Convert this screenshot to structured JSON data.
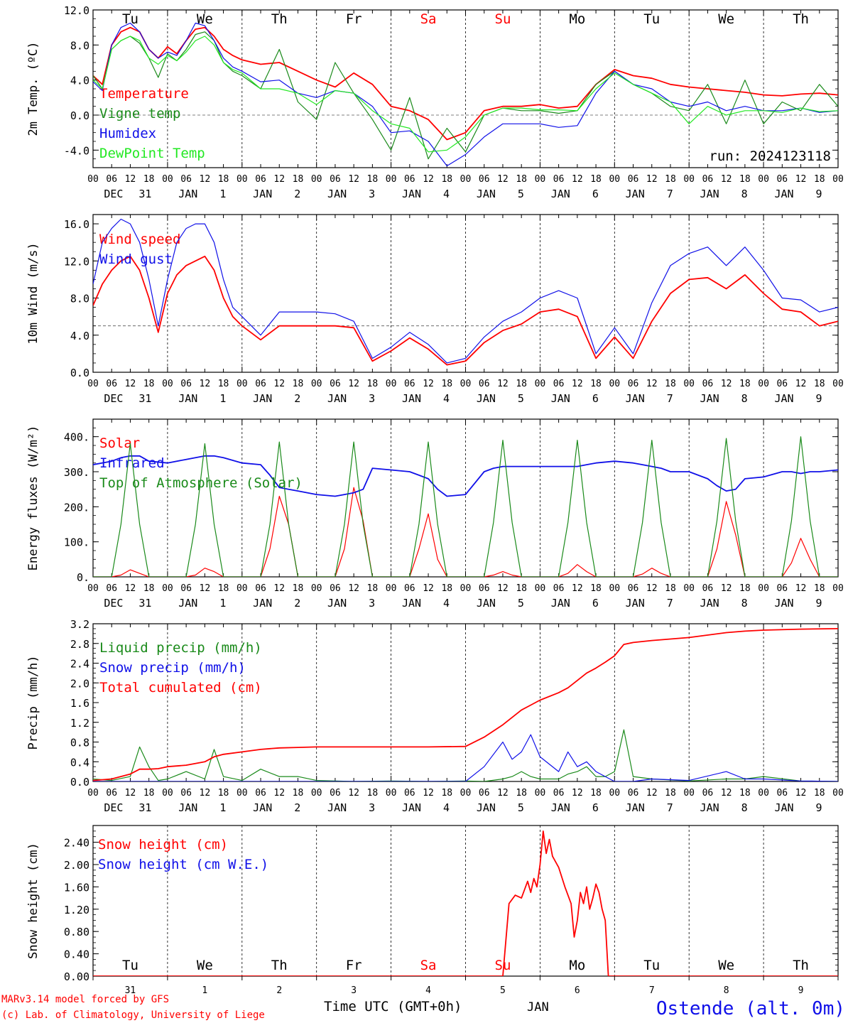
{
  "colors": {
    "red": "#ff0000",
    "darkgreen": "#1a8a1a",
    "blue": "#1010e8",
    "lightgreen": "#22e822",
    "weekend": "#ff0000"
  },
  "day_names": [
    "Tu",
    "We",
    "Th",
    "Fr",
    "Sa",
    "Su",
    "Mo",
    "Tu",
    "We",
    "Th"
  ],
  "weekend_flags": [
    false,
    false,
    false,
    false,
    true,
    true,
    false,
    false,
    false,
    false
  ],
  "hour_ticks": [
    "00",
    "06",
    "12",
    "18"
  ],
  "date_labels": [
    {
      "mon": "DEC",
      "day": "31"
    },
    {
      "mon": "JAN",
      "day": "1"
    },
    {
      "mon": "JAN",
      "day": "2"
    },
    {
      "mon": "JAN",
      "day": "3"
    },
    {
      "mon": "JAN",
      "day": "4"
    },
    {
      "mon": "JAN",
      "day": "5"
    },
    {
      "mon": "JAN",
      "day": "6"
    },
    {
      "mon": "JAN",
      "day": "7"
    },
    {
      "mon": "JAN",
      "day": "8"
    },
    {
      "mon": "JAN",
      "day": "9"
    }
  ],
  "bottom_days": [
    "31",
    "1",
    "2",
    "3",
    "4",
    "5",
    "6",
    "7",
    "8",
    "9"
  ],
  "footer": {
    "model": "MARv3.14 model forced by GFS",
    "credit": "(c) Lab. of Climatology, University of Liege",
    "xlabel": "Time UTC (GMT+0h)",
    "month": "JAN",
    "station": "Ostende (alt. 0m)"
  },
  "chart_data": [
    {
      "type": "line",
      "ylabel": "2m Temp. (ºC)",
      "ylim": [
        -6,
        12
      ],
      "yticks": [
        "-4.0",
        "0.0",
        "4.0",
        "8.0",
        "12.0"
      ],
      "ytick_values": [
        -4,
        0,
        4,
        8,
        12
      ],
      "reference_line": 0,
      "annotation": "run: 2024123118",
      "x_hours": [
        0,
        3,
        6,
        9,
        12,
        15,
        18,
        21,
        24,
        27,
        30,
        33,
        36,
        39,
        42,
        45,
        48,
        54,
        60,
        66,
        72,
        78,
        84,
        90,
        96,
        102,
        108,
        114,
        120,
        126,
        132,
        138,
        144,
        150,
        156,
        162,
        168,
        174,
        180,
        186,
        192,
        198,
        204,
        210,
        216,
        222,
        228,
        234,
        240
      ],
      "series": [
        {
          "name": "Temperature",
          "color": "red",
          "values": [
            4.5,
            3.5,
            8.0,
            9.5,
            10.0,
            9.5,
            7.5,
            6.5,
            7.8,
            7.0,
            8.5,
            9.8,
            10.0,
            9.0,
            7.5,
            6.8,
            6.3,
            5.8,
            6.0,
            5.0,
            4.0,
            3.2,
            4.8,
            3.5,
            1.0,
            0.5,
            -0.5,
            -2.8,
            -2.0,
            0.5,
            1.0,
            1.0,
            1.2,
            0.8,
            1.0,
            3.5,
            5.2,
            4.5,
            4.2,
            3.5,
            3.2,
            3.0,
            2.8,
            2.6,
            2.3,
            2.2,
            2.4,
            2.5,
            2.3
          ]
        },
        {
          "name": "Vigne temp",
          "color": "darkgreen",
          "values": [
            4.5,
            3.0,
            7.5,
            8.5,
            9.0,
            8.2,
            6.5,
            4.3,
            7.0,
            6.2,
            7.5,
            9.2,
            9.5,
            8.5,
            6.0,
            5.0,
            4.5,
            3.0,
            7.5,
            1.5,
            -0.5,
            6.0,
            2.5,
            -0.5,
            -4.0,
            2.0,
            -5.0,
            -1.5,
            -4.2,
            0.0,
            0.8,
            0.5,
            0.5,
            0.2,
            0.5,
            3.5,
            5.0,
            3.5,
            2.5,
            1.0,
            0.5,
            3.5,
            -1.0,
            4.0,
            -1.0,
            1.5,
            0.5,
            3.5,
            1.0
          ]
        },
        {
          "name": "Humidex",
          "color": "blue",
          "values": [
            3.8,
            2.8,
            8.0,
            10.0,
            10.5,
            9.5,
            7.5,
            6.5,
            7.2,
            6.8,
            8.5,
            10.5,
            10.2,
            8.5,
            6.5,
            5.5,
            5.0,
            3.8,
            4.0,
            2.5,
            2.0,
            2.8,
            2.5,
            1.0,
            -2.0,
            -1.8,
            -3.0,
            -5.8,
            -4.5,
            -2.5,
            -1.0,
            -1.0,
            -1.0,
            -1.4,
            -1.2,
            2.5,
            5.0,
            3.5,
            3.0,
            1.5,
            1.0,
            1.5,
            0.5,
            1.0,
            0.5,
            0.5,
            0.8,
            0.3,
            0.5
          ]
        },
        {
          "name": "DewPoint Temp",
          "color": "lightgreen",
          "values": [
            4.0,
            3.0,
            7.5,
            8.5,
            9.0,
            8.5,
            6.5,
            5.8,
            6.8,
            6.2,
            7.2,
            8.5,
            9.0,
            8.0,
            6.0,
            5.2,
            4.8,
            3.0,
            3.0,
            2.5,
            1.2,
            2.8,
            2.5,
            0.5,
            -1.0,
            -1.5,
            -4.2,
            -4.0,
            -2.5,
            0.0,
            0.8,
            0.8,
            0.6,
            0.6,
            0.5,
            3.0,
            4.8,
            3.5,
            2.5,
            1.5,
            -1.0,
            1.0,
            0.0,
            0.5,
            0.5,
            0.3,
            0.8,
            0.4,
            0.5
          ]
        }
      ]
    },
    {
      "type": "line",
      "ylabel": "10m Wind (m/s)",
      "ylim": [
        0,
        17
      ],
      "yticks": [
        "0.0",
        "4.0",
        "8.0",
        "12.0",
        "16.0"
      ],
      "ytick_values": [
        0,
        4,
        8,
        12,
        16
      ],
      "reference_line": 5,
      "x_hours": [
        0,
        3,
        6,
        9,
        12,
        15,
        18,
        21,
        24,
        27,
        30,
        33,
        36,
        39,
        42,
        45,
        48,
        54,
        60,
        66,
        72,
        78,
        84,
        90,
        96,
        102,
        108,
        114,
        120,
        126,
        132,
        138,
        144,
        150,
        156,
        162,
        168,
        174,
        180,
        186,
        192,
        198,
        204,
        210,
        216,
        222,
        228,
        234,
        240
      ],
      "series": [
        {
          "name": "Wind speed",
          "color": "red",
          "values": [
            7.2,
            9.5,
            11.0,
            12.0,
            12.5,
            11.0,
            8.0,
            4.3,
            8.5,
            10.5,
            11.5,
            12.0,
            12.5,
            11.0,
            8.0,
            6.0,
            5.0,
            3.5,
            5.0,
            5.0,
            5.0,
            5.0,
            4.8,
            1.2,
            2.3,
            3.7,
            2.5,
            0.8,
            1.2,
            3.2,
            4.5,
            5.2,
            6.5,
            6.8,
            6.0,
            1.5,
            3.8,
            1.5,
            5.5,
            8.5,
            10.0,
            10.2,
            9.0,
            10.5,
            8.5,
            6.8,
            6.5,
            5.0,
            5.5
          ]
        },
        {
          "name": "Wind gust",
          "color": "blue",
          "values": [
            9.5,
            14.0,
            15.5,
            16.5,
            16.0,
            14.0,
            10.0,
            5.0,
            10.0,
            14.0,
            15.5,
            16.0,
            16.0,
            14.0,
            10.0,
            7.0,
            6.0,
            4.0,
            6.5,
            6.5,
            6.5,
            6.3,
            5.5,
            1.5,
            2.7,
            4.3,
            3.0,
            1.0,
            1.5,
            3.8,
            5.5,
            6.5,
            8.0,
            8.8,
            8.0,
            2.0,
            4.8,
            2.0,
            7.5,
            11.5,
            12.8,
            13.5,
            11.5,
            13.5,
            11.0,
            8.0,
            7.8,
            6.5,
            7.0
          ]
        }
      ]
    },
    {
      "type": "line",
      "ylabel": "Energy fluxes (W/m²)",
      "ylim": [
        0,
        450
      ],
      "yticks": [
        "0.",
        "100.",
        "200.",
        "300.",
        "400."
      ],
      "ytick_values": [
        0,
        100,
        200,
        300,
        400
      ],
      "x_hours": [
        0,
        6,
        9,
        12,
        15,
        18,
        24,
        30,
        33,
        36,
        39,
        42,
        48,
        54,
        57,
        60,
        63,
        66,
        72,
        78,
        81,
        84,
        87,
        90,
        96,
        102,
        105,
        108,
        111,
        114,
        120,
        126,
        129,
        132,
        135,
        138,
        144,
        150,
        153,
        156,
        159,
        162,
        168,
        174,
        177,
        180,
        183,
        186,
        192,
        198,
        201,
        204,
        207,
        210,
        216,
        222,
        225,
        228,
        231,
        234,
        240
      ],
      "series": [
        {
          "name": "Solar",
          "color": "red",
          "values": [
            0,
            0,
            5,
            20,
            10,
            0,
            0,
            0,
            5,
            25,
            15,
            0,
            0,
            0,
            80,
            230,
            150,
            0,
            0,
            0,
            80,
            255,
            160,
            0,
            0,
            0,
            80,
            180,
            50,
            0,
            0,
            0,
            5,
            15,
            5,
            0,
            0,
            0,
            10,
            35,
            15,
            0,
            0,
            0,
            8,
            25,
            10,
            0,
            0,
            0,
            80,
            215,
            120,
            0,
            0,
            0,
            40,
            110,
            50,
            0,
            0
          ]
        },
        {
          "name": "Infrared",
          "color": "blue",
          "values": [
            320,
            330,
            340,
            345,
            345,
            330,
            325,
            335,
            340,
            345,
            345,
            340,
            325,
            320,
            290,
            255,
            250,
            245,
            235,
            230,
            235,
            240,
            250,
            310,
            305,
            300,
            290,
            280,
            250,
            230,
            235,
            300,
            310,
            315,
            315,
            315,
            315,
            315,
            315,
            315,
            320,
            325,
            330,
            325,
            320,
            315,
            310,
            300,
            300,
            280,
            260,
            245,
            250,
            280,
            285,
            300,
            300,
            295,
            300,
            300,
            305
          ]
        },
        {
          "name": "Top of Atmosphere (Solar)",
          "color": "darkgreen",
          "values": [
            0,
            0,
            150,
            380,
            150,
            0,
            0,
            0,
            150,
            380,
            150,
            0,
            0,
            0,
            150,
            385,
            150,
            0,
            0,
            0,
            150,
            385,
            150,
            0,
            0,
            0,
            150,
            385,
            150,
            0,
            0,
            0,
            155,
            390,
            155,
            0,
            0,
            0,
            155,
            390,
            155,
            0,
            0,
            0,
            155,
            390,
            155,
            0,
            0,
            0,
            160,
            395,
            160,
            0,
            0,
            0,
            160,
            400,
            160,
            0,
            0
          ]
        }
      ]
    },
    {
      "type": "line",
      "ylabel": "Precip (mm/h)",
      "ylim": [
        0,
        3.2
      ],
      "yticks": [
        "0.0",
        "0.4",
        "0.8",
        "1.2",
        "1.6",
        "2.0",
        "2.4",
        "2.8",
        "3.2"
      ],
      "ytick_values": [
        0,
        0.4,
        0.8,
        1.2,
        1.6,
        2.0,
        2.4,
        2.8,
        3.2
      ],
      "x_hours": [
        0,
        6,
        12,
        15,
        18,
        21,
        24,
        30,
        36,
        39,
        42,
        48,
        54,
        60,
        66,
        72,
        84,
        96,
        108,
        120,
        126,
        132,
        135,
        138,
        141,
        144,
        150,
        153,
        156,
        159,
        162,
        165,
        168,
        171,
        174,
        180,
        192,
        204,
        210,
        216,
        228,
        240
      ],
      "series": [
        {
          "name": "Liquid precip (mm/h)",
          "color": "darkgreen",
          "values": [
            0.05,
            0.02,
            0.1,
            0.7,
            0.3,
            0.02,
            0.05,
            0.2,
            0.05,
            0.65,
            0.1,
            0.02,
            0.25,
            0.1,
            0.1,
            0.02,
            0.0,
            0.01,
            0.0,
            0.01,
            0.0,
            0.05,
            0.1,
            0.2,
            0.1,
            0.05,
            0.05,
            0.15,
            0.2,
            0.3,
            0.1,
            0.1,
            0.2,
            1.05,
            0.1,
            0.05,
            0.01,
            0.05,
            0.05,
            0.1,
            0.01,
            0.0
          ]
        },
        {
          "name": "Snow precip (mm/h)",
          "color": "blue",
          "values": [
            0.0,
            0.0,
            0.0,
            0.0,
            0.0,
            0.0,
            0.0,
            0.0,
            0.0,
            0.0,
            0.0,
            0.0,
            0.0,
            0.0,
            0.0,
            0.0,
            0.0,
            0.0,
            0.0,
            0.0,
            0.3,
            0.8,
            0.45,
            0.6,
            0.95,
            0.5,
            0.2,
            0.6,
            0.3,
            0.4,
            0.2,
            0.1,
            0.0,
            0.0,
            0.0,
            0.05,
            0.02,
            0.2,
            0.05,
            0.05,
            0.01,
            0.0
          ]
        },
        {
          "name": "Total cumulated (cm)",
          "color": "red",
          "values": [
            0.02,
            0.05,
            0.15,
            0.25,
            0.25,
            0.26,
            0.3,
            0.33,
            0.4,
            0.5,
            0.55,
            0.6,
            0.65,
            0.68,
            0.69,
            0.7,
            0.7,
            0.7,
            0.7,
            0.71,
            0.9,
            1.15,
            1.3,
            1.45,
            1.55,
            1.65,
            1.8,
            1.9,
            2.05,
            2.2,
            2.3,
            2.42,
            2.55,
            2.78,
            2.82,
            2.86,
            2.92,
            3.02,
            3.05,
            3.07,
            3.09,
            3.1
          ]
        }
      ]
    },
    {
      "type": "line",
      "ylabel": "Snow height (cm)",
      "ylim": [
        0,
        2.7
      ],
      "yticks": [
        "0.00",
        "0.40",
        "0.80",
        "1.20",
        "1.60",
        "2.00",
        "2.40"
      ],
      "ytick_values": [
        0,
        0.4,
        0.8,
        1.2,
        1.6,
        2.0,
        2.4
      ],
      "x_hours": [
        0,
        48,
        96,
        132,
        134,
        136,
        138,
        140,
        141,
        142,
        143,
        144,
        145,
        146,
        147,
        148,
        150,
        152,
        154,
        155,
        156,
        157,
        158,
        159,
        160,
        161,
        162,
        163,
        164,
        165,
        166,
        167,
        168,
        192,
        240
      ],
      "series": [
        {
          "name": "Snow height (cm)",
          "color": "red",
          "values": [
            0,
            0,
            0,
            0,
            1.3,
            1.45,
            1.4,
            1.7,
            1.5,
            1.75,
            1.6,
            2.0,
            2.6,
            2.2,
            2.45,
            2.15,
            1.95,
            1.6,
            1.3,
            0.7,
            1.0,
            1.5,
            1.3,
            1.6,
            1.2,
            1.4,
            1.65,
            1.5,
            1.2,
            1.0,
            0.0,
            0,
            0,
            0,
            0
          ]
        },
        {
          "name": "Snow height (cm W.E.)",
          "color": "blue",
          "values": []
        }
      ]
    }
  ]
}
